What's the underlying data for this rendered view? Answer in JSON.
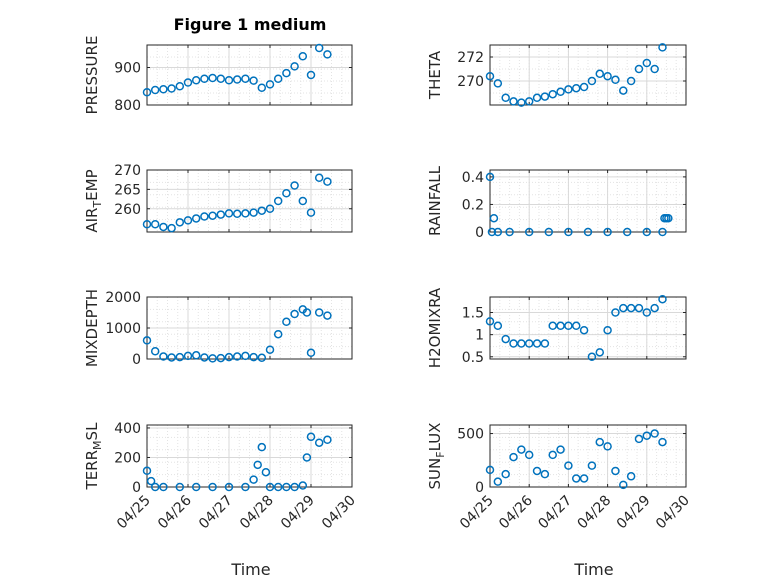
{
  "figure_title": "Figure 1 medium",
  "x_axis_label": "Time",
  "colors": {
    "marker": "#0072BD",
    "grid": "#d9d9d9",
    "axis": "#262626"
  },
  "chart_data": [
    {
      "type": "scatter",
      "ylabel": "PRESSURE",
      "xlim": [
        0,
        5
      ],
      "ylim": [
        800,
        960
      ],
      "yticks": [
        800,
        900
      ],
      "x": [
        0.0,
        0.2,
        0.4,
        0.6,
        0.8,
        1.0,
        1.2,
        1.4,
        1.6,
        1.8,
        2.0,
        2.2,
        2.4,
        2.6,
        2.8,
        3.0,
        3.2,
        3.4,
        3.6,
        3.8,
        4.0,
        4.2,
        4.4
      ],
      "y": [
        834,
        840,
        842,
        844,
        850,
        860,
        866,
        870,
        872,
        870,
        866,
        868,
        870,
        865,
        846,
        855,
        870,
        885,
        903,
        930,
        880,
        952,
        935
      ],
      "title": "Figure 1 medium"
    },
    {
      "type": "scatter",
      "ylabel": "THETA",
      "xlim": [
        0,
        5
      ],
      "ylim": [
        268,
        273
      ],
      "yticks": [
        270,
        272
      ],
      "x": [
        0.0,
        0.2,
        0.4,
        0.6,
        0.8,
        1.0,
        1.2,
        1.4,
        1.6,
        1.8,
        2.0,
        2.2,
        2.4,
        2.6,
        2.8,
        3.0,
        3.2,
        3.4,
        3.6,
        3.8,
        4.0,
        4.2,
        4.4
      ],
      "y": [
        270.4,
        269.8,
        268.6,
        268.3,
        268.2,
        268.3,
        268.6,
        268.7,
        268.9,
        269.1,
        269.3,
        269.4,
        269.5,
        270.0,
        270.6,
        270.4,
        270.1,
        269.2,
        270.0,
        271.0,
        271.5,
        271.0,
        272.8
      ]
    },
    {
      "type": "scatter",
      "ylabel": "AIR_TEMP",
      "xlim": [
        0,
        5
      ],
      "ylim": [
        254,
        270
      ],
      "yticks": [
        260,
        265,
        270
      ],
      "x": [
        0.0,
        0.2,
        0.4,
        0.6,
        0.8,
        1.0,
        1.2,
        1.4,
        1.6,
        1.8,
        2.0,
        2.2,
        2.4,
        2.6,
        2.8,
        3.0,
        3.2,
        3.4,
        3.6,
        3.8,
        4.0,
        4.2,
        4.4
      ],
      "y": [
        256.0,
        256.0,
        255.3,
        255.0,
        256.5,
        257.0,
        257.5,
        258.0,
        258.2,
        258.5,
        258.8,
        258.7,
        258.8,
        259.0,
        259.5,
        260.0,
        262.0,
        264.0,
        266.0,
        262.0,
        259.0,
        268.0,
        267.0
      ]
    },
    {
      "type": "scatter",
      "ylabel": "RAINFALL",
      "xlim": [
        0,
        5
      ],
      "ylim": [
        0,
        0.45
      ],
      "yticks": [
        0,
        0.2,
        0.4
      ],
      "x": [
        0.0,
        0.05,
        0.1,
        0.2,
        0.5,
        1.0,
        1.5,
        2.0,
        2.5,
        3.0,
        3.5,
        4.0,
        4.4,
        4.45,
        4.5,
        4.55
      ],
      "y": [
        0.4,
        0.0,
        0.1,
        0.0,
        0.0,
        0.0,
        0.0,
        0.0,
        0.0,
        0.0,
        0.0,
        0.0,
        0.0,
        0.1,
        0.1,
        0.1
      ]
    },
    {
      "type": "scatter",
      "ylabel": "MIXDEPTH",
      "xlim": [
        0,
        5
      ],
      "ylim": [
        0,
        2000
      ],
      "yticks": [
        0,
        1000,
        2000
      ],
      "x": [
        0.0,
        0.2,
        0.4,
        0.6,
        0.8,
        1.0,
        1.2,
        1.4,
        1.6,
        1.8,
        2.0,
        2.2,
        2.4,
        2.6,
        2.8,
        3.0,
        3.2,
        3.4,
        3.6,
        3.8,
        3.9,
        4.0,
        4.2,
        4.4
      ],
      "y": [
        600,
        250,
        80,
        50,
        60,
        100,
        120,
        50,
        20,
        30,
        60,
        80,
        100,
        60,
        40,
        300,
        800,
        1200,
        1450,
        1600,
        1500,
        200,
        1500,
        1400
      ]
    },
    {
      "type": "scatter",
      "ylabel": "H2OMIXRA",
      "xlim": [
        0,
        5
      ],
      "ylim": [
        0.45,
        1.85
      ],
      "yticks": [
        0.5,
        1,
        1.5
      ],
      "x": [
        0.0,
        0.2,
        0.4,
        0.6,
        0.8,
        1.0,
        1.2,
        1.4,
        1.6,
        1.8,
        2.0,
        2.2,
        2.4,
        2.6,
        2.8,
        3.0,
        3.2,
        3.4,
        3.6,
        3.8,
        4.0,
        4.2,
        4.4
      ],
      "y": [
        1.3,
        1.2,
        0.9,
        0.8,
        0.8,
        0.8,
        0.8,
        0.8,
        1.2,
        1.2,
        1.2,
        1.2,
        1.1,
        0.5,
        0.6,
        1.1,
        1.5,
        1.6,
        1.6,
        1.6,
        1.5,
        1.6,
        1.8
      ]
    },
    {
      "type": "scatter",
      "ylabel": "TERR_MSL",
      "xlim": [
        0,
        5
      ],
      "ylim": [
        0,
        420
      ],
      "yticks": [
        0,
        200,
        400
      ],
      "x": [
        0.0,
        0.1,
        0.2,
        0.4,
        0.8,
        1.2,
        1.6,
        2.0,
        2.4,
        2.6,
        2.7,
        2.8,
        2.9,
        3.0,
        3.2,
        3.4,
        3.6,
        3.8,
        3.9,
        4.0,
        4.2,
        4.4
      ],
      "y": [
        110,
        40,
        0,
        0,
        0,
        0,
        0,
        0,
        0,
        50,
        150,
        270,
        100,
        0,
        0,
        0,
        0,
        10,
        200,
        340,
        300,
        320
      ]
    },
    {
      "type": "scatter",
      "ylabel": "SUN_FLUX",
      "xlim": [
        0,
        5
      ],
      "ylim": [
        0,
        580
      ],
      "yticks": [
        0,
        500
      ],
      "x": [
        0.0,
        0.2,
        0.4,
        0.6,
        0.8,
        1.0,
        1.2,
        1.4,
        1.6,
        1.8,
        2.0,
        2.2,
        2.4,
        2.6,
        2.8,
        3.0,
        3.2,
        3.4,
        3.6,
        3.8,
        4.0,
        4.2,
        4.4
      ],
      "y": [
        160,
        50,
        120,
        280,
        350,
        300,
        150,
        120,
        300,
        350,
        200,
        80,
        80,
        200,
        420,
        380,
        150,
        20,
        100,
        450,
        480,
        500,
        420
      ]
    }
  ],
  "x_tick_labels": [
    "04/25",
    "04/26",
    "04/27",
    "04/28",
    "04/29",
    "04/30"
  ]
}
